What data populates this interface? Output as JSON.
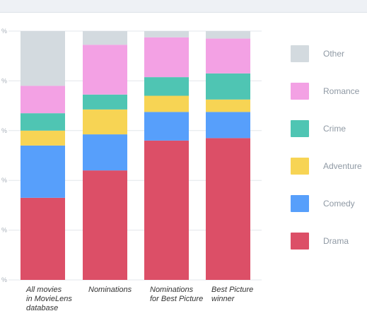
{
  "chart_data": {
    "type": "bar",
    "stacked": true,
    "percent": true,
    "title": "",
    "xlabel": "",
    "ylabel": "",
    "ylim": [
      0,
      100
    ],
    "y_ticks": [
      0,
      20,
      40,
      60,
      80,
      100
    ],
    "y_tick_labels": [
      "%",
      "%",
      "%",
      "%",
      "%",
      "%"
    ],
    "grid": true,
    "legend_position": "right",
    "categories": [
      [
        "All movies",
        "in MovieLens",
        "database"
      ],
      [
        "Nominations"
      ],
      [
        "Nominations",
        "for Best Picture"
      ],
      [
        "Best Picture",
        "winner"
      ]
    ],
    "series": [
      {
        "name": "Drama",
        "color": "#dc4f67",
        "values": [
          33,
          44,
          56,
          57
        ]
      },
      {
        "name": "Comedy",
        "color": "#579ffb",
        "values": [
          21,
          14.5,
          11.5,
          10.5
        ]
      },
      {
        "name": "Adventure",
        "color": "#f7d454",
        "values": [
          6,
          10,
          6.5,
          5
        ]
      },
      {
        "name": "Crime",
        "color": "#4fc5b3",
        "values": [
          7,
          6,
          7.5,
          10.5
        ]
      },
      {
        "name": "Romance",
        "color": "#f3a1e4",
        "values": [
          11,
          20,
          16,
          14
        ]
      },
      {
        "name": "Other",
        "color": "#d3dadf",
        "values": [
          22,
          5.5,
          2.5,
          3
        ]
      }
    ],
    "legend_order": [
      "Other",
      "Romance",
      "Crime",
      "Adventure",
      "Comedy",
      "Drama"
    ]
  }
}
